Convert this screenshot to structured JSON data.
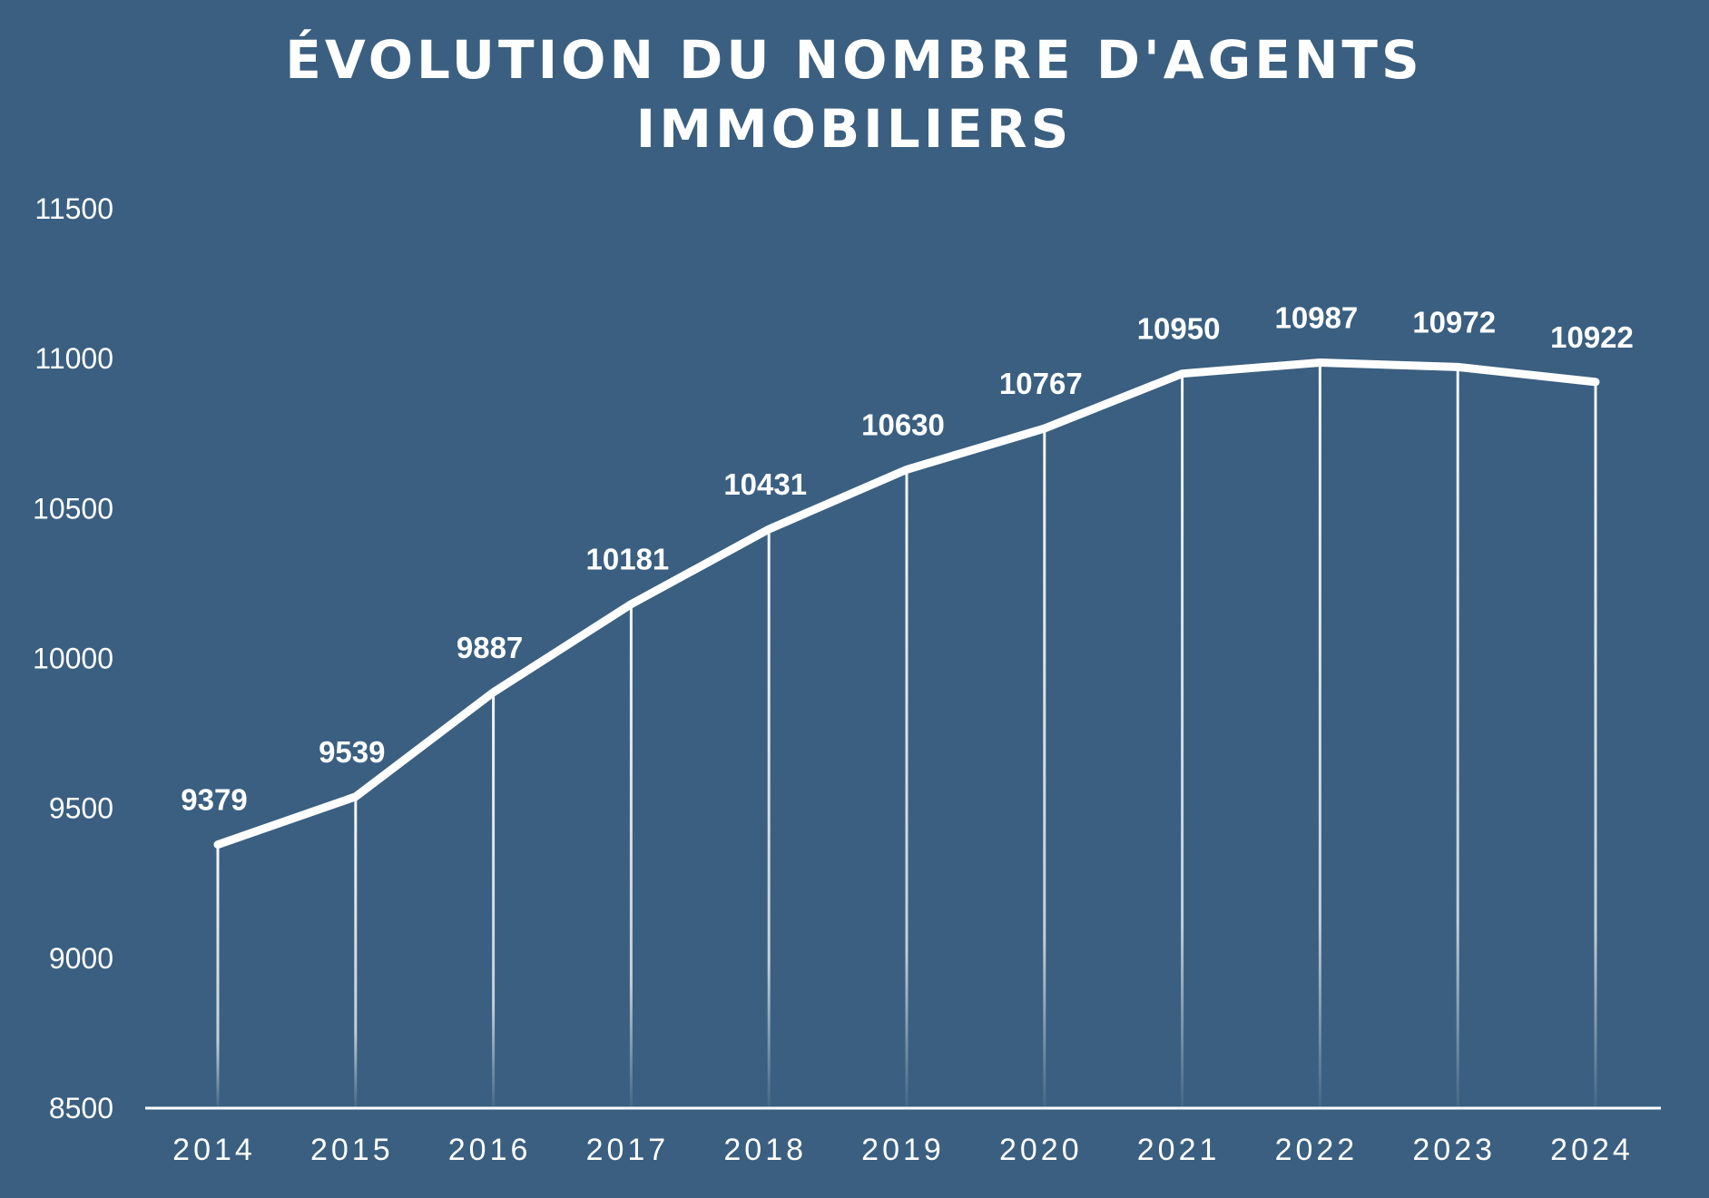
{
  "chart_data": {
    "type": "line",
    "title_lines": [
      "ÉVOLUTION DU NOMBRE D'AGENTS",
      "IMMOBILIERS"
    ],
    "categories": [
      "2014",
      "2015",
      "2016",
      "2017",
      "2018",
      "2019",
      "2020",
      "2021",
      "2022",
      "2023",
      "2024"
    ],
    "series": [
      {
        "values": [
          9379,
          9539,
          9887,
          10181,
          10431,
          10630,
          10767,
          10950,
          10987,
          10972,
          10922
        ]
      }
    ],
    "data_labels": [
      "9379",
      "9539",
      "9887",
      "10181",
      "10431",
      "10630",
      "10767",
      "10950",
      "10987",
      "10972",
      "10922"
    ],
    "ylim": [
      8500,
      11500
    ],
    "yticks": [
      8500,
      9000,
      9500,
      10000,
      10500,
      11000,
      11500
    ],
    "ytick_labels": [
      "8500",
      "9000",
      "9500",
      "10000",
      "10500",
      "11000",
      "11500"
    ],
    "xlabel": "",
    "ylabel": "",
    "grid": false,
    "drop_lines": true,
    "legend": "none",
    "colors": {
      "background": "#3a5f80",
      "line": "#ffffff",
      "text": "#ffffff"
    }
  }
}
